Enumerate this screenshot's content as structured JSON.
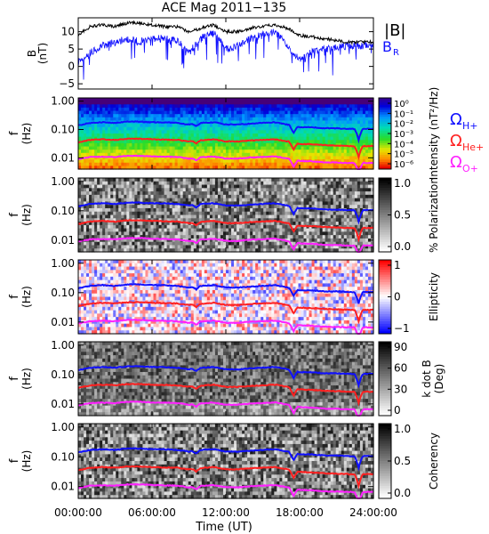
{
  "title": "ACE Mag 2011−135",
  "time_axis": {
    "label": "Time (UT)",
    "ticks": [
      "00:00:00",
      "06:00:00",
      "12:00:00",
      "18:00:00",
      "24:00:00"
    ],
    "tick_hours": [
      0,
      6,
      12,
      18,
      24
    ],
    "range_hours": [
      0,
      24
    ]
  },
  "freq_axis": {
    "label_line1": "f",
    "label_line2": "(Hz)",
    "ticks": [
      "1.00",
      "0.10",
      "0.01"
    ],
    "tick_values": [
      1.0,
      0.1,
      0.01
    ],
    "scale": "log",
    "range_hz": [
      0.004,
      1.3
    ]
  },
  "gyro_legend": [
    {
      "label": "Ω",
      "sub": "H+",
      "color": "#1010ff"
    },
    {
      "label": "Ω",
      "sub": "He+",
      "color": "#ff2020"
    },
    {
      "label": "Ω",
      "sub": "O+",
      "color": "#ff20ff"
    }
  ],
  "mag_legend": [
    {
      "label": "|B|",
      "sub": "",
      "color": "#000000"
    },
    {
      "label": "B",
      "sub": "R",
      "color": "#1010ff"
    }
  ],
  "panels": [
    {
      "id": "mag",
      "ylabel_line1": "B",
      "ylabel_line2": "(nT)",
      "yticks": [
        "10",
        "5",
        "0",
        "−5"
      ],
      "ytick_values": [
        10,
        5,
        0,
        -5
      ],
      "yrange": [
        -6.5,
        14
      ]
    },
    {
      "id": "intensity",
      "colorbar_label": "Intensity (nT²/Hz)",
      "colorbar_ticks": [
        "10⁰",
        "10⁻¹",
        "10⁻²",
        "10⁻³",
        "10⁻⁴",
        "10⁻⁵",
        "10⁻⁶"
      ],
      "colormap": "rainbow"
    },
    {
      "id": "polarization",
      "colorbar_label": "% Polarization",
      "colorbar_ticks": [
        "1.0",
        "0.5",
        "0.0"
      ],
      "colormap": "gray"
    },
    {
      "id": "ellipticity",
      "colorbar_label": "Ellipticity",
      "colorbar_ticks": [
        "1",
        "0",
        "−1"
      ],
      "colormap": "bwr"
    },
    {
      "id": "kdotb",
      "colorbar_label_line1": "k dot B",
      "colorbar_label_line2": "(Deg)",
      "colorbar_ticks": [
        "90",
        "60",
        "30",
        "0"
      ],
      "colormap": "gray"
    },
    {
      "id": "coherency",
      "colorbar_label": "Coherency",
      "colorbar_ticks": [
        "1.0",
        "0.5",
        "0.0"
      ],
      "colormap": "gray"
    }
  ],
  "chart_data": {
    "type": "line",
    "title": "ACE Mag 2011−135",
    "xlabel": "Time (UT)",
    "x_hours": [
      0,
      1,
      2,
      3,
      4,
      5,
      6,
      7,
      8,
      9,
      10,
      11,
      12,
      13,
      14,
      15,
      16,
      17,
      18,
      19,
      20,
      21,
      22,
      23,
      24
    ],
    "magnetic_field": {
      "ylabel": "B (nT)",
      "ylim": [
        -6.5,
        14
      ],
      "series": [
        {
          "name": "|B|",
          "color": "#000000",
          "values": [
            9,
            11.5,
            12,
            11.5,
            12.5,
            12.5,
            12,
            11.5,
            11.5,
            10,
            11,
            12,
            10,
            10,
            11,
            11.5,
            12,
            11,
            9,
            8.5,
            8,
            7.5,
            7,
            7,
            7
          ]
        },
        {
          "name": "B_R",
          "color": "#1010ff",
          "values": [
            1,
            4,
            6,
            7,
            8,
            7,
            8,
            8,
            7.5,
            4,
            8,
            10,
            5,
            6,
            8,
            9,
            10,
            6,
            2,
            4,
            5,
            5.5,
            6,
            6,
            6.5
          ]
        }
      ]
    },
    "gyrofrequencies_hz": {
      "ylabel": "f (Hz)",
      "series": [
        {
          "name": "ΩH+",
          "color": "#1010ff",
          "values": [
            0.14,
            0.17,
            0.18,
            0.17,
            0.19,
            0.19,
            0.18,
            0.18,
            0.17,
            0.15,
            0.17,
            0.18,
            0.15,
            0.15,
            0.16,
            0.17,
            0.18,
            0.15,
            0.12,
            0.12,
            0.11,
            0.11,
            0.105,
            0.105,
            0.105
          ]
        },
        {
          "name": "ΩHe+",
          "color": "#ff2020",
          "values": [
            0.035,
            0.043,
            0.045,
            0.043,
            0.047,
            0.047,
            0.045,
            0.044,
            0.043,
            0.038,
            0.042,
            0.045,
            0.038,
            0.038,
            0.041,
            0.043,
            0.045,
            0.038,
            0.031,
            0.03,
            0.028,
            0.027,
            0.026,
            0.026,
            0.026
          ]
        },
        {
          "name": "ΩO+",
          "color": "#ff20ff",
          "values": [
            0.009,
            0.0107,
            0.011,
            0.0107,
            0.0118,
            0.0118,
            0.0112,
            0.011,
            0.0107,
            0.0094,
            0.0105,
            0.0112,
            0.0094,
            0.0094,
            0.0103,
            0.0107,
            0.0112,
            0.0094,
            0.0078,
            0.0075,
            0.0069,
            0.0068,
            0.0066,
            0.0066,
            0.0066
          ]
        }
      ],
      "dips": [
        {
          "hour": 17.5,
          "depth": 0.45
        },
        {
          "hour": 22.8,
          "depth": 0.6
        },
        {
          "hour": 9.6,
          "depth": 0.2
        }
      ]
    },
    "spectrogram_panels": [
      "Intensity (nT²/Hz)",
      "% Polarization",
      "Ellipticity",
      "k dot B (Deg)",
      "Coherency"
    ]
  }
}
